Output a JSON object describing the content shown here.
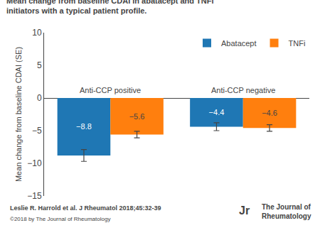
{
  "chart_data": {
    "type": "bar",
    "title": "Mean change from baseline CDAI in abatacept and TNFi initiators with a typical patient profile.",
    "ylabel": "Mean change from baseline CDAI (SE)",
    "categories": [
      "Anti-CCP positive",
      "Anti-CCP negative"
    ],
    "series": [
      {
        "name": "Abatacept",
        "values": [
          -8.8,
          -4.4
        ],
        "errors": [
          0.9,
          0.6
        ],
        "value_labels": [
          "−8.8",
          "−4.4"
        ]
      },
      {
        "name": "TNFi",
        "values": [
          -5.6,
          -4.6
        ],
        "errors": [
          0.5,
          0.5
        ],
        "value_labels": [
          "−5.6",
          "−4.6"
        ]
      }
    ],
    "ylim": [
      -15,
      10
    ],
    "yticks": [
      {
        "value": -15,
        "label": "−15"
      },
      {
        "value": -10,
        "label": "−10"
      },
      {
        "value": -5,
        "label": "−5"
      },
      0,
      5,
      10
    ],
    "data_labels": true,
    "legend": "upper right",
    "tick_labels": "y",
    "grid": false,
    "annotations": [
      "Leslie R. Harrold et al. J Rheumatol 2018;45:32-39",
      "©2018 by The Journal of Rheumatology",
      "The Journal of\nRheumatology",
      "Jr"
    ]
  }
}
